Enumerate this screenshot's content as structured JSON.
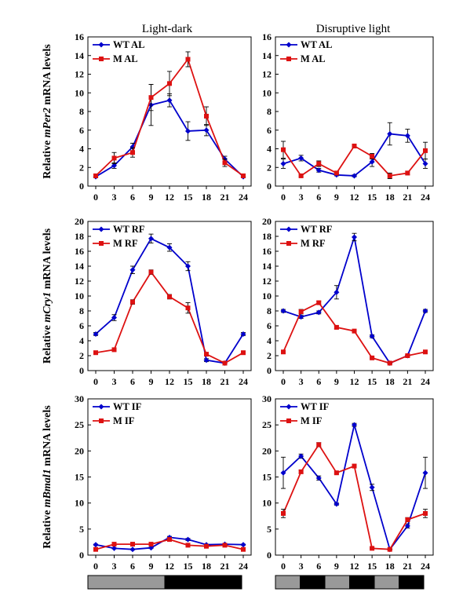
{
  "column_titles": [
    "Light-dark",
    "Disruptive light"
  ],
  "ylabels": [
    {
      "pre": "Relative ",
      "gene": "mPer2",
      "post": " mRNA levels"
    },
    {
      "pre": "Relative ",
      "gene": "mCry1",
      "post": " mRNA levels"
    },
    {
      "pre": "Relative ",
      "gene": "mBmal1",
      "post": " mRNA levels"
    }
  ],
  "colors": {
    "wt": "#0000cc",
    "m": "#dd1111",
    "error_bar": "#000000",
    "light_bar": "#999999",
    "dark_bar": "#000000"
  },
  "x_ticks": [
    0,
    3,
    6,
    9,
    12,
    15,
    18,
    21,
    24
  ],
  "chart_data": [
    {
      "type": "line",
      "row": 0,
      "col": 0,
      "ylim": [
        0,
        16
      ],
      "yticks": [
        0,
        2,
        4,
        6,
        8,
        10,
        12,
        14,
        16
      ],
      "x": [
        0,
        3,
        6,
        9,
        12,
        15,
        18,
        21,
        24
      ],
      "series": [
        {
          "name": "WT AL",
          "color": "#0000cc",
          "marker": "diamond",
          "values": [
            1.0,
            2.2,
            4.2,
            8.7,
            9.2,
            5.9,
            6.0,
            2.9,
            1.0
          ],
          "errors": [
            0.1,
            0.3,
            0.4,
            2.2,
            0.7,
            1.0,
            0.6,
            0.3,
            0.1
          ]
        },
        {
          "name": "M AL",
          "color": "#dd1111",
          "marker": "square",
          "values": [
            1.1,
            3.0,
            3.6,
            9.5,
            11.0,
            13.6,
            7.5,
            2.5,
            1.1
          ],
          "errors": [
            0.2,
            0.6,
            0.5,
            1.4,
            1.3,
            0.8,
            1.0,
            0.4,
            0.1
          ]
        }
      ]
    },
    {
      "type": "line",
      "row": 0,
      "col": 1,
      "ylim": [
        0,
        16
      ],
      "yticks": [
        0,
        2,
        4,
        6,
        8,
        10,
        12,
        14,
        16
      ],
      "x": [
        0,
        3,
        6,
        9,
        12,
        15,
        18,
        21,
        24
      ],
      "series": [
        {
          "name": "WT AL",
          "color": "#0000cc",
          "marker": "diamond",
          "values": [
            2.4,
            3.0,
            1.7,
            1.2,
            1.1,
            2.6,
            5.6,
            5.4,
            2.4
          ],
          "errors": [
            0.5,
            0.3,
            0.2,
            0.1,
            0.1,
            0.5,
            1.2,
            0.7,
            0.5
          ]
        },
        {
          "name": "M AL",
          "color": "#dd1111",
          "marker": "square",
          "values": [
            3.9,
            1.1,
            2.4,
            1.4,
            4.3,
            3.2,
            1.1,
            1.4,
            3.8
          ],
          "errors": [
            0.9,
            0.1,
            0.3,
            0.1,
            0.2,
            0.3,
            0.3,
            0.2,
            0.9
          ]
        }
      ]
    },
    {
      "type": "line",
      "row": 1,
      "col": 0,
      "ylim": [
        0,
        20
      ],
      "yticks": [
        0,
        2,
        4,
        6,
        8,
        10,
        12,
        14,
        16,
        18,
        20
      ],
      "x": [
        0,
        3,
        6,
        9,
        12,
        15,
        18,
        21,
        24
      ],
      "series": [
        {
          "name": "WT RF",
          "color": "#0000cc",
          "marker": "diamond",
          "values": [
            4.9,
            7.1,
            13.5,
            17.7,
            16.5,
            14.0,
            1.4,
            1.0,
            4.9
          ],
          "errors": [
            0.2,
            0.4,
            0.5,
            0.6,
            0.5,
            0.6,
            0.2,
            0.1,
            0.2
          ]
        },
        {
          "name": "M RF",
          "color": "#dd1111",
          "marker": "square",
          "values": [
            2.4,
            2.8,
            9.2,
            13.2,
            9.9,
            8.4,
            2.2,
            1.0,
            2.4
          ],
          "errors": [
            0.2,
            0.2,
            0.3,
            0.3,
            0.3,
            0.7,
            0.2,
            0.1,
            0.2
          ]
        }
      ]
    },
    {
      "type": "line",
      "row": 1,
      "col": 1,
      "ylim": [
        0,
        20
      ],
      "yticks": [
        0,
        2,
        4,
        6,
        8,
        10,
        12,
        14,
        16,
        18,
        20
      ],
      "x": [
        0,
        3,
        6,
        9,
        12,
        15,
        18,
        21,
        24
      ],
      "series": [
        {
          "name": "WT RF",
          "color": "#0000cc",
          "marker": "diamond",
          "values": [
            8.0,
            7.2,
            7.8,
            10.5,
            17.9,
            4.6,
            1.0,
            2.0,
            8.0
          ],
          "errors": [
            0.2,
            0.2,
            0.2,
            0.9,
            0.5,
            0.2,
            0.1,
            0.1,
            0.2
          ]
        },
        {
          "name": "M RF",
          "color": "#dd1111",
          "marker": "square",
          "values": [
            2.5,
            7.9,
            9.1,
            5.8,
            5.3,
            1.7,
            1.0,
            2.0,
            2.5
          ],
          "errors": [
            0.2,
            0.3,
            0.2,
            0.2,
            0.2,
            0.1,
            0.1,
            0.1,
            0.2
          ]
        }
      ]
    },
    {
      "type": "line",
      "row": 2,
      "col": 0,
      "ylim": [
        0,
        30
      ],
      "yticks": [
        0,
        5,
        10,
        15,
        20,
        25,
        30
      ],
      "x": [
        0,
        3,
        6,
        9,
        12,
        15,
        18,
        21,
        24
      ],
      "series": [
        {
          "name": "WT IF",
          "color": "#0000cc",
          "marker": "diamond",
          "values": [
            2.0,
            1.3,
            1.1,
            1.4,
            3.4,
            3.0,
            2.0,
            2.1,
            2.0
          ],
          "errors": [
            0.1,
            0.1,
            0.1,
            0.1,
            0.2,
            0.2,
            0.1,
            0.1,
            0.1
          ]
        },
        {
          "name": "M IF",
          "color": "#dd1111",
          "marker": "square",
          "values": [
            1.1,
            2.1,
            2.1,
            2.1,
            3.0,
            1.9,
            1.7,
            1.9,
            1.1
          ],
          "errors": [
            0.1,
            0.1,
            0.1,
            0.1,
            0.2,
            0.1,
            0.1,
            0.1,
            0.1
          ]
        }
      ]
    },
    {
      "type": "line",
      "row": 2,
      "col": 1,
      "ylim": [
        0,
        30
      ],
      "yticks": [
        0,
        5,
        10,
        15,
        20,
        25,
        30
      ],
      "x": [
        0,
        3,
        6,
        9,
        12,
        15,
        18,
        21,
        24
      ],
      "series": [
        {
          "name": "WT IF",
          "color": "#0000cc",
          "marker": "diamond",
          "values": [
            15.8,
            19.0,
            14.8,
            9.8,
            25.0,
            13.0,
            1.1,
            5.6,
            15.8
          ],
          "errors": [
            3.0,
            0.4,
            0.4,
            0.2,
            0.3,
            0.6,
            0.1,
            0.4,
            3.0
          ]
        },
        {
          "name": "M IF",
          "color": "#dd1111",
          "marker": "square",
          "values": [
            8.0,
            16.0,
            21.2,
            15.8,
            17.1,
            1.3,
            1.1,
            6.8,
            8.0
          ],
          "errors": [
            0.8,
            0.3,
            0.4,
            0.2,
            0.3,
            0.1,
            0.1,
            0.4,
            0.8
          ]
        }
      ]
    }
  ],
  "light_dark_bars": [
    {
      "col": 0,
      "segments": [
        {
          "from": 0,
          "to": 12,
          "phase": "light"
        },
        {
          "from": 12,
          "to": 24,
          "phase": "dark"
        }
      ]
    },
    {
      "col": 1,
      "segments": [
        {
          "from": 0,
          "to": 4,
          "phase": "light"
        },
        {
          "from": 4,
          "to": 8,
          "phase": "dark"
        },
        {
          "from": 8,
          "to": 12,
          "phase": "light"
        },
        {
          "from": 12,
          "to": 16,
          "phase": "dark"
        },
        {
          "from": 16,
          "to": 20,
          "phase": "light"
        },
        {
          "from": 20,
          "to": 24,
          "phase": "dark"
        }
      ]
    }
  ]
}
